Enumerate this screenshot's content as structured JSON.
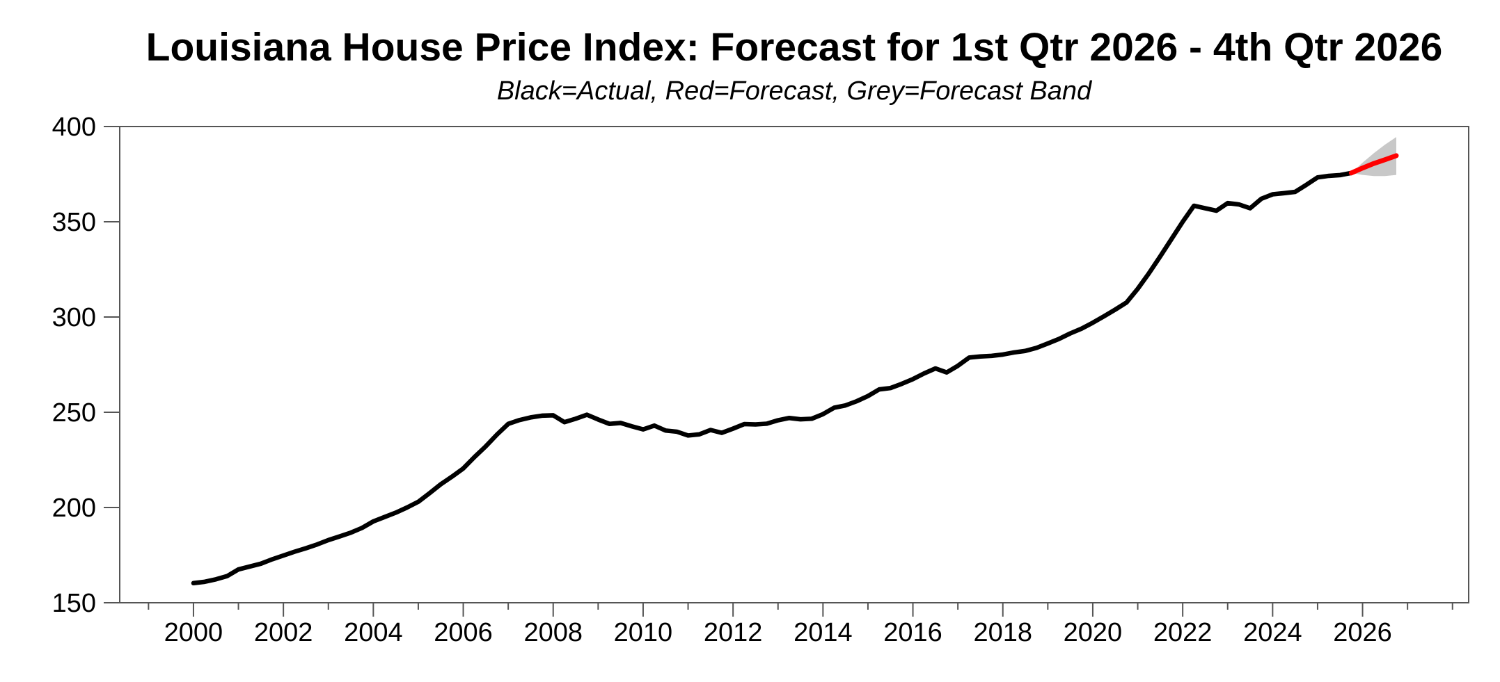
{
  "style": {
    "background": "#ffffff",
    "frame_color": "#555555",
    "text_color": "#000000",
    "actual_color": "#000000",
    "forecast_color": "#ff0000",
    "band_color": "#c8c8c8"
  },
  "chart_data": {
    "type": "line",
    "title": "Louisiana House Price Index: Forecast for 1st Qtr 2026 - 4th Qtr 2026",
    "subtitle": "Black=Actual, Red=Forecast, Grey=Forecast Band",
    "legend": [
      {
        "label": "Actual",
        "color": "#000000"
      },
      {
        "label": "Forecast",
        "color": "#ff0000"
      },
      {
        "label": "Forecast Band",
        "color": "#c8c8c8"
      }
    ],
    "x_axis": {
      "range": [
        1998.36,
        2028.36
      ],
      "major_tick_years": [
        2000,
        2002,
        2004,
        2006,
        2008,
        2010,
        2012,
        2014,
        2016,
        2018,
        2020,
        2022,
        2024,
        2026
      ],
      "minor_tick_years": [
        1999,
        2001,
        2003,
        2005,
        2007,
        2009,
        2011,
        2013,
        2015,
        2017,
        2019,
        2021,
        2023,
        2025,
        2027,
        2028
      ]
    },
    "y_axis": {
      "range": [
        150,
        400
      ],
      "ticks": [
        150,
        200,
        250,
        300,
        350,
        400
      ]
    },
    "series": [
      {
        "name": "Actual",
        "role": "actual",
        "color": "#000000",
        "x_start": 2000.0,
        "x_step": 0.25,
        "values": [
          160.3,
          161.0,
          162.3,
          164.0,
          167.5,
          169.0,
          170.5,
          172.8,
          174.8,
          176.8,
          178.6,
          180.6,
          182.9,
          184.8,
          186.8,
          189.3,
          192.7,
          195.0,
          197.3,
          200.0,
          203.0,
          207.5,
          212.2,
          216.2,
          220.5,
          226.5,
          232.1,
          238.3,
          243.9,
          245.9,
          247.3,
          248.2,
          248.4,
          244.8,
          246.6,
          248.7,
          246.2,
          243.9,
          244.4,
          242.6,
          241.0,
          243.0,
          240.4,
          239.8,
          237.8,
          238.4,
          240.7,
          239.2,
          241.4,
          243.8,
          243.6,
          244.0,
          245.8,
          247.0,
          246.3,
          246.6,
          249.0,
          252.4,
          253.6,
          255.8,
          258.5,
          262.0,
          262.7,
          264.9,
          267.4,
          270.4,
          273.0,
          270.9,
          274.4,
          278.7,
          279.3,
          279.6,
          280.3,
          281.4,
          282.2,
          283.8,
          286.1,
          288.5,
          291.4,
          293.9,
          297.0,
          300.4,
          303.9,
          307.6,
          314.8,
          323.0,
          331.8,
          340.9,
          350.0,
          358.4,
          357.1,
          355.8,
          359.8,
          359.1,
          357.1,
          362.1,
          364.4,
          365.0,
          365.7,
          369.4,
          373.3,
          374.1,
          374.5,
          375.6
        ]
      },
      {
        "name": "Forecast",
        "role": "forecast",
        "color": "#ff0000",
        "x": [
          2025.75,
          2026.0,
          2026.25,
          2026.5,
          2026.75
        ],
        "values": [
          375.6,
          378.2,
          380.6,
          382.6,
          384.7
        ]
      },
      {
        "name": "Forecast Band",
        "role": "band",
        "color": "#c8c8c8",
        "x": [
          2025.75,
          2026.0,
          2026.25,
          2026.5,
          2026.75
        ],
        "upper": [
          375.6,
          381.0,
          386.0,
          390.5,
          394.5
        ],
        "lower": [
          375.6,
          374.6,
          374.0,
          374.0,
          374.6
        ]
      }
    ]
  }
}
